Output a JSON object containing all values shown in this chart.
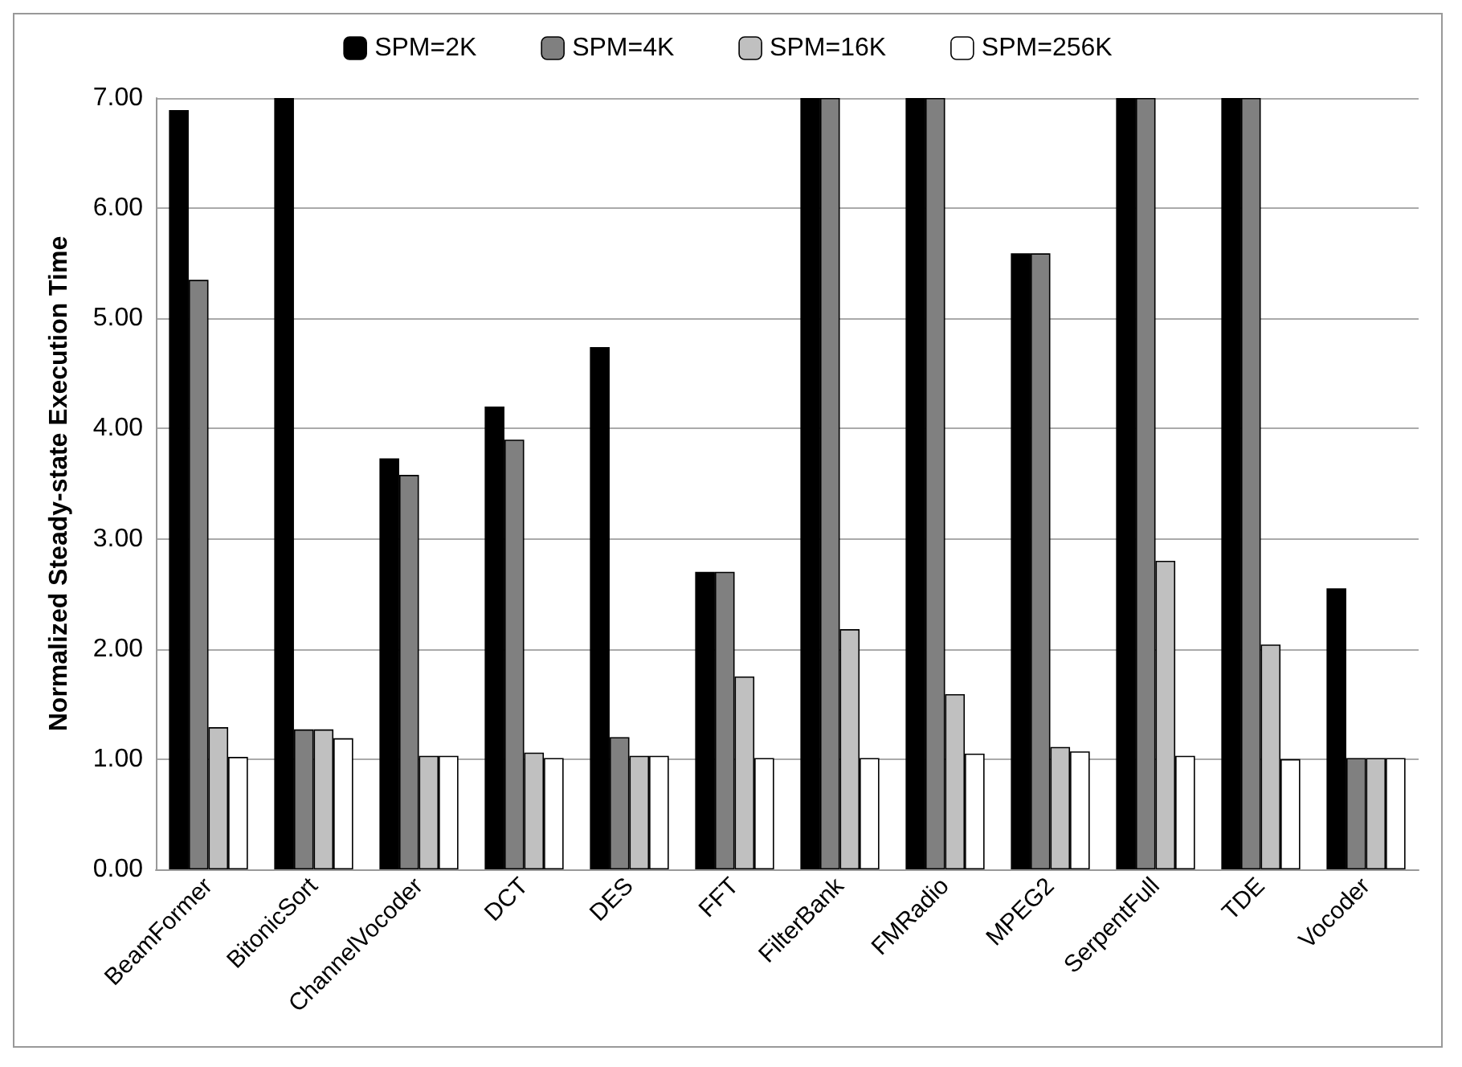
{
  "chart_data": {
    "type": "bar",
    "ylabel": "Normalized Steady-state Execution Time",
    "categories": [
      "BeamFormer",
      "BitonicSort",
      "ChannelVocoder",
      "DCT",
      "DES",
      "FFT",
      "FilterBank",
      "FMRadio",
      "MPEG2",
      "SerpentFull",
      "TDE",
      "Vocoder"
    ],
    "series": [
      {
        "name": "SPM=2K",
        "color": "#000000",
        "values": [
          6.89,
          7,
          3.73,
          4.2,
          4.74,
          2.7,
          7,
          7,
          5.59,
          7,
          7,
          2.55
        ]
      },
      {
        "name": "SPM=4K",
        "color": "#808080",
        "values": [
          5.35,
          1.27,
          3.58,
          3.9,
          1.2,
          2.7,
          7,
          7,
          5.59,
          7,
          7,
          1.01
        ]
      },
      {
        "name": "SPM=16K",
        "color": "#c0c0c0",
        "values": [
          1.29,
          1.27,
          1.03,
          1.06,
          1.03,
          1.75,
          2.18,
          1.59,
          1.11,
          2.8,
          2.04,
          1.01
        ]
      },
      {
        "name": "SPM=256K",
        "color": "#ffffff",
        "values": [
          1.02,
          1.19,
          1.03,
          1.01,
          1.03,
          1.01,
          1.01,
          1.05,
          1.07,
          1.03,
          1.0,
          1.01
        ]
      }
    ],
    "ylim": [
      0,
      7
    ],
    "yticks": [
      {
        "value": 0,
        "label": "0.00"
      },
      {
        "value": 1,
        "label": "1.00"
      },
      {
        "value": 2,
        "label": "2.00"
      },
      {
        "value": 3,
        "label": "3.00"
      },
      {
        "value": 4,
        "label": "4.00"
      },
      {
        "value": 5,
        "label": "5.00"
      },
      {
        "value": 6,
        "label": "6.00"
      },
      {
        "value": 7,
        "label": "7.00"
      }
    ],
    "grid": "y",
    "legend": "top"
  }
}
